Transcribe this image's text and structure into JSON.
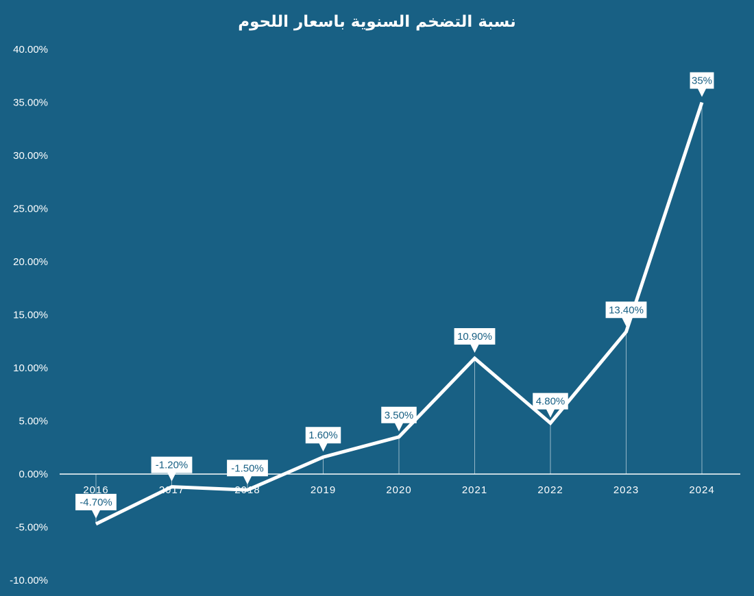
{
  "chart_data": {
    "type": "line",
    "title": "نسبة التضخم السنوية باسعار اللحوم",
    "categories": [
      "2016",
      "2017",
      "2018",
      "2019",
      "2020",
      "2021",
      "2022",
      "2023",
      "2024"
    ],
    "series": [
      {
        "values": [
          -4.7,
          -1.2,
          -1.5,
          1.6,
          3.5,
          10.9,
          4.8,
          13.4,
          35
        ],
        "labels": [
          "-4.70%",
          "-1.20%",
          "-1.50%",
          "1.60%",
          "3.50%",
          "10.90%",
          "4.80%",
          "13.40%",
          "35%"
        ]
      }
    ],
    "ylim": [
      -10,
      40
    ],
    "yticks": [
      40,
      35,
      30,
      25,
      20,
      15,
      10,
      5,
      0,
      -5,
      -10
    ],
    "ytick_labels": [
      "40.00%",
      "35.00%",
      "30.00%",
      "25.00%",
      "20.00%",
      "15.00%",
      "10.00%",
      "5.00%",
      "0.00%",
      "-5.00%",
      "-10.00%"
    ],
    "grid": false,
    "drop_lines": true
  },
  "colors": {
    "background": "#186084",
    "line": "#ffffff",
    "label_box": "#ffffff",
    "label_text": "#186084"
  }
}
